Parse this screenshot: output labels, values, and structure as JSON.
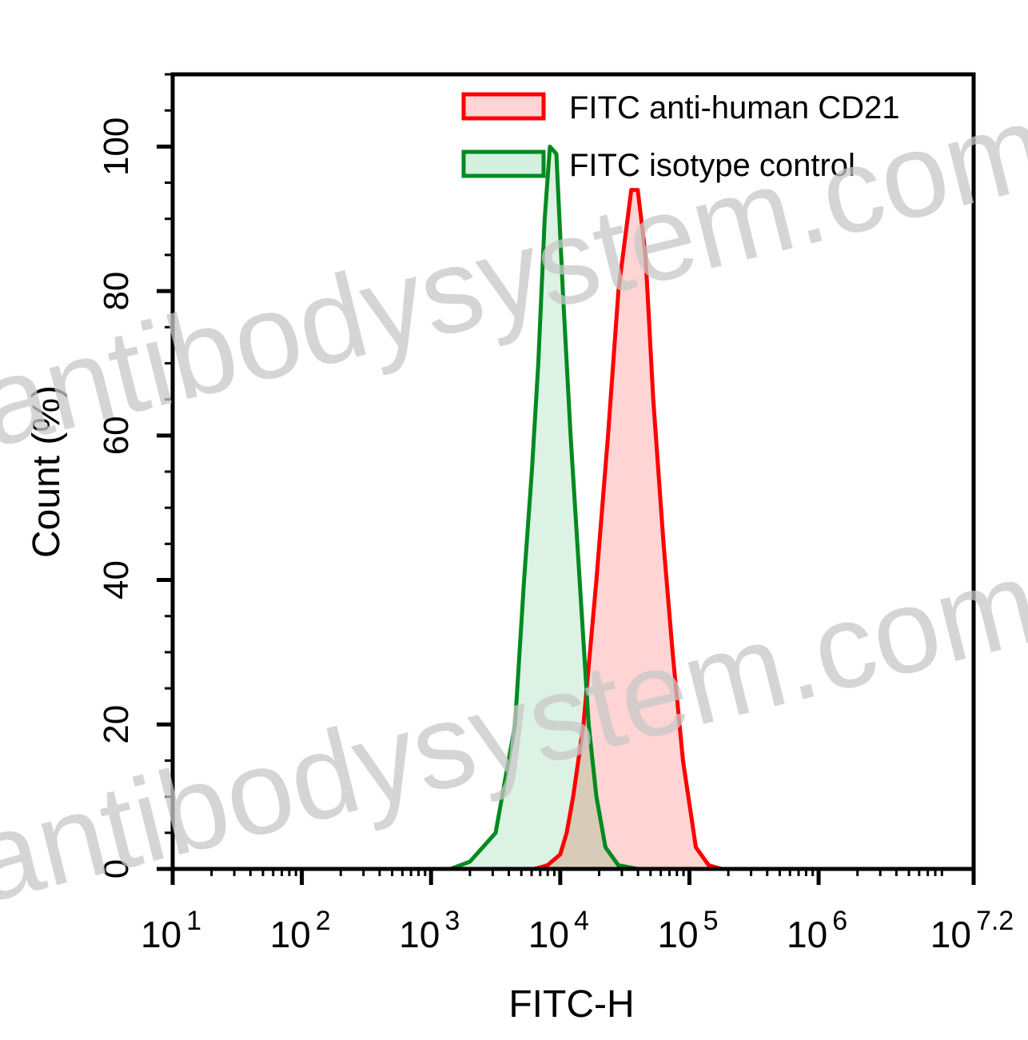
{
  "chart_data": {
    "type": "area",
    "title": "",
    "xlabel": "FITC-H",
    "ylabel": "Count (%)",
    "xscale": "log10",
    "xlim_log10": [
      1,
      7.2
    ],
    "ylim": [
      0,
      110
    ],
    "x_ticks": [
      {
        "base": "10",
        "exp": "1",
        "log10": 1
      },
      {
        "base": "10",
        "exp": "2",
        "log10": 2
      },
      {
        "base": "10",
        "exp": "3",
        "log10": 3
      },
      {
        "base": "10",
        "exp": "4",
        "log10": 4
      },
      {
        "base": "10",
        "exp": "5",
        "log10": 5
      },
      {
        "base": "10",
        "exp": "6",
        "log10": 6
      },
      {
        "base": "10",
        "exp": "7.2",
        "log10": 7.2
      }
    ],
    "y_ticks": [
      0,
      20,
      40,
      60,
      80,
      100
    ],
    "y_minor_step": 5,
    "grid": false,
    "legend_position": "top-right",
    "series": [
      {
        "name": "FITC anti-human CD21",
        "line_color": "#ff0000",
        "fill_color": "#ffd4d4",
        "x_log10": [
          3.8,
          3.9,
          4.0,
          4.05,
          4.1,
          4.18,
          4.28,
          4.37,
          4.45,
          4.5,
          4.55,
          4.6,
          4.66,
          4.72,
          4.8,
          4.87,
          4.95,
          5.05,
          5.15,
          5.25
        ],
        "values": [
          0,
          0.5,
          2,
          5,
          10,
          20,
          40,
          60,
          80,
          87,
          94,
          94,
          85,
          65,
          45,
          30,
          15,
          3,
          0.5,
          0
        ]
      },
      {
        "name": "FITC isotype control",
        "line_color": "#008a20",
        "fill_color": "#d6f0e0",
        "x_log10": [
          3.15,
          3.3,
          3.4,
          3.5,
          3.55,
          3.65,
          3.72,
          3.78,
          3.83,
          3.88,
          3.92,
          3.97,
          4.02,
          4.08,
          4.15,
          4.22,
          4.28,
          4.35,
          4.45,
          4.6
        ],
        "values": [
          0,
          1,
          3,
          5,
          10,
          20,
          40,
          55,
          70,
          90,
          100,
          99,
          80,
          60,
          40,
          20,
          10,
          3,
          0.5,
          0
        ]
      }
    ],
    "overlap_fill_color": "#d8cbb8"
  },
  "watermark": {
    "text": "antibodysystem.com",
    "color": "#c8c8c8"
  }
}
